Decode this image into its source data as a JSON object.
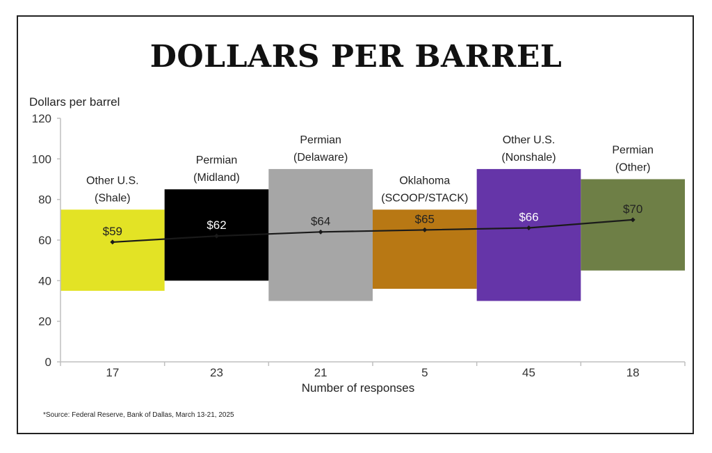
{
  "title": "DOLLARS PER BARREL",
  "source": "*Source: Federal Reserve, Bank of Dallas, March 13-21, 2025",
  "chart_data": {
    "type": "bar",
    "title": "DOLLARS PER BARREL",
    "ylabel": "Dollars per barrel",
    "xlabel": "Number of responses",
    "ylim": [
      0,
      120
    ],
    "yticks": [
      0,
      20,
      40,
      60,
      80,
      100,
      120
    ],
    "grid": false,
    "categories": [
      {
        "name_lines": [
          "Other U.S.",
          "(Shale)"
        ],
        "responses": "17",
        "low": 35,
        "high": 75,
        "value": 59,
        "value_label": "$59",
        "color": "#e3e325"
      },
      {
        "name_lines": [
          "Permian",
          "(Midland)"
        ],
        "responses": "23",
        "low": 40,
        "high": 85,
        "value": 62,
        "value_label": "$62",
        "color": "#000000"
      },
      {
        "name_lines": [
          "Permian",
          "(Delaware)"
        ],
        "responses": "21",
        "low": 30,
        "high": 95,
        "value": 64,
        "value_label": "$64",
        "color": "#a6a6a6"
      },
      {
        "name_lines": [
          "Oklahoma",
          "(SCOOP/STACK)"
        ],
        "responses": "5",
        "low": 36,
        "high": 75,
        "value": 65,
        "value_label": "$65",
        "color": "#b87814"
      },
      {
        "name_lines": [
          "Other U.S.",
          "(Nonshale)"
        ],
        "responses": "45",
        "low": 30,
        "high": 95,
        "value": 66,
        "value_label": "$66",
        "color": "#6535a8"
      },
      {
        "name_lines": [
          "Permian",
          "(Other)"
        ],
        "responses": "18",
        "low": 45,
        "high": 90,
        "value": 70,
        "value_label": "$70",
        "color": "#6e7f46"
      }
    ],
    "line_color": "#1a1a1a"
  }
}
